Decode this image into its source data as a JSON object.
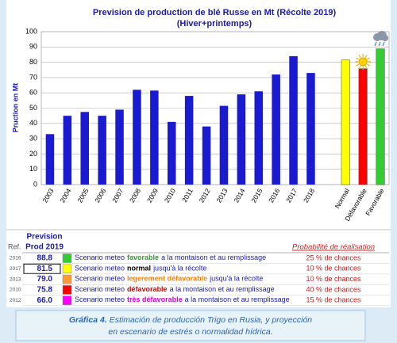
{
  "chart_data": {
    "type": "bar",
    "title": "Prevision de production de blé Russe  en Mt (Récolte 2019)",
    "subtitle": "(Hiver+printemps)",
    "y_label": "Pruction en Mt",
    "categories": [
      "2003",
      "2004",
      "2005",
      "2006",
      "2007",
      "2008",
      "2009",
      "2010",
      "2011",
      "2012",
      "2013",
      "2014",
      "2015",
      "2016",
      "2017",
      "2018",
      null,
      "Normal",
      "Défavorable",
      "Favorable"
    ],
    "values": [
      33,
      45,
      47.5,
      45,
      49,
      62,
      61.5,
      41,
      58,
      38,
      51.5,
      59,
      61,
      72,
      84,
      73,
      null,
      81.5,
      75.8,
      88.8
    ],
    "colors": [
      "#1a1ad0",
      "#1a1ad0",
      "#1a1ad0",
      "#1a1ad0",
      "#1a1ad0",
      "#1a1ad0",
      "#1a1ad0",
      "#1a1ad0",
      "#1a1ad0",
      "#1a1ad0",
      "#1a1ad0",
      "#1a1ad0",
      "#1a1ad0",
      "#1a1ad0",
      "#1a1ad0",
      "#1a1ad0",
      null,
      "#ffff00",
      "#ff0000",
      "#33cc33"
    ],
    "ylim": [
      0,
      100
    ],
    "yticks": [
      0,
      10,
      20,
      30,
      40,
      50,
      60,
      70,
      80,
      90,
      100
    ],
    "grid": true
  },
  "table": {
    "header": {
      "ref": "Ref.",
      "prevision": "Prevision",
      "prod": "Prod 2019",
      "probability": "Probabilité de réalisation"
    },
    "rows": [
      {
        "ref": "2016",
        "value": "88.8",
        "swatch": "#33cc33",
        "prefix": "Scenario meteo",
        "emph": "favorable",
        "emph_color": "#2ca02c",
        "suffix": "a la montaison et au remplissage",
        "prob": "25 % de chances"
      },
      {
        "ref": "2017",
        "value": "81.5",
        "swatch": "#ffff00",
        "prefix": "Scenario meteo",
        "emph": "normal",
        "emph_color": "#000000",
        "suffix": "jusqu'à la récolte",
        "prob": "10 % de chances",
        "highlight": true
      },
      {
        "ref": "2013",
        "value": "79.0",
        "swatch": "#ff9933",
        "prefix": "Scenario meteo",
        "emph": "legerement défavorable",
        "emph_color": "#ff8000",
        "suffix": "jusqu'à la récolte",
        "prob": "10 % de chances"
      },
      {
        "ref": "2010",
        "value": "75.8",
        "swatch": "#ff0000",
        "prefix": "Scenario meteo",
        "emph": "défavorable",
        "emph_color": "#e00000",
        "suffix": "a la montaison et au remplissage",
        "prob": "40 % de chances"
      },
      {
        "ref": "2012",
        "value": "66.0",
        "swatch": "#ff00ff",
        "prefix": "Scenario meteo",
        "emph": "très défavorable",
        "emph_color": "#e000e0",
        "suffix": "a la montaison et au remplissage",
        "prob": "15 % de chances"
      }
    ]
  },
  "caption": {
    "label": "Gráfica 4.",
    "lines": [
      "Estimación de producción Trigo en Rusia, y proyección",
      "en escenario de estrés o normalidad hídrica."
    ]
  }
}
